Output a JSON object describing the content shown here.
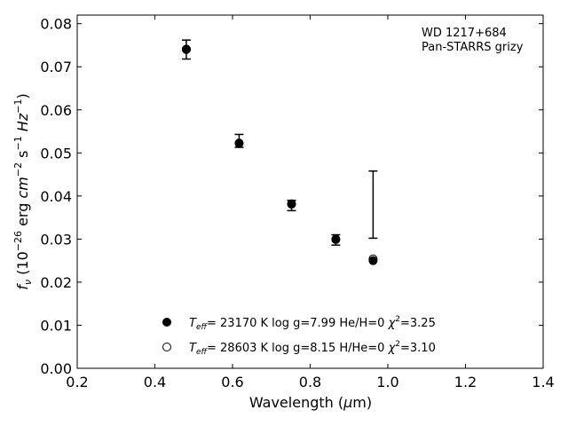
{
  "chart_data": {
    "type": "scatter",
    "title": "",
    "xlabel": "Wavelength (μm)",
    "ylabel": "f_ν (10^-26 erg cm^-2 s^-1 Hz^-1)",
    "xlim": [
      0.2,
      1.4
    ],
    "ylim": [
      0.0,
      0.082
    ],
    "x_ticks": [
      "0.2",
      "0.4",
      "0.6",
      "0.8",
      "1.0",
      "1.2",
      "1.4"
    ],
    "y_ticks": [
      "0.00",
      "0.01",
      "0.02",
      "0.03",
      "0.04",
      "0.05",
      "0.06",
      "0.07",
      "0.08"
    ],
    "annotation": [
      "WD 1217+684",
      "Pan-STARRS grizy"
    ],
    "observed": [
      {
        "x": 0.481,
        "y": 0.074,
        "err": 0.0022
      },
      {
        "x": 0.617,
        "y": 0.0528,
        "err": 0.0015
      },
      {
        "x": 0.752,
        "y": 0.0378,
        "err": 0.0012
      },
      {
        "x": 0.866,
        "y": 0.0298,
        "err": 0.0012
      },
      {
        "x": 0.962,
        "y": 0.038,
        "err": 0.0078
      }
    ],
    "series": [
      {
        "name": "T_eff= 23170 K  log g=7.99  He/H=0  χ2=3.25",
        "marker": "filled-circle",
        "x": [
          0.481,
          0.617,
          0.752,
          0.866,
          0.962
        ],
        "y": [
          0.074,
          0.0522,
          0.0381,
          0.0299,
          0.025
        ]
      },
      {
        "name": "T_eff= 28603 K  log g=8.15  H/He=0  χ2=3.10",
        "marker": "open-circle",
        "x": [
          0.481,
          0.617,
          0.752,
          0.866,
          0.962
        ],
        "y": [
          0.0741,
          0.0523,
          0.0382,
          0.03,
          0.0254
        ]
      }
    ],
    "legend_location": "lower-center",
    "grid": false
  },
  "legend": {
    "teff_prefix": "T",
    "teff_sub": "eff",
    "entry1": {
      "params": "= 23170 K  log g=7.99  He/H=0  ",
      "chi": "χ",
      "chi_sup": "2",
      "chi_val": "=3.25"
    },
    "entry2": {
      "params": "= 28603 K  log g=8.15  H/He=0  ",
      "chi": "χ",
      "chi_sup": "2",
      "chi_val": "=3.10"
    }
  },
  "labels": {
    "x_main": "Wavelength (",
    "x_mu": "μ",
    "x_unit": "m)",
    "y_f": "f",
    "y_nu": "ν",
    "y_open": " (10",
    "y_exp": "−26",
    "y_erg": " erg ",
    "y_cm": "cm",
    "y_cm_exp": "−2",
    "y_s": " s",
    "y_s_exp": "−1",
    "y_hz": " Hz",
    "y_hz_exp": "−1",
    "y_close": ")"
  }
}
